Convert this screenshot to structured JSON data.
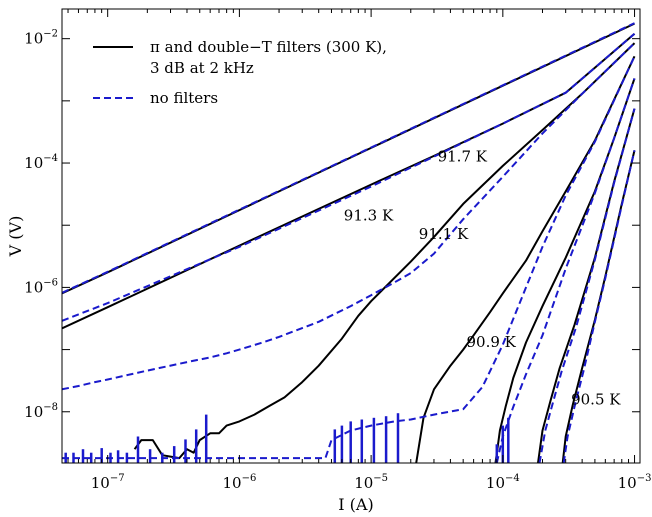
{
  "chart_data": {
    "type": "line",
    "xlabel": "I (A)",
    "ylabel": "V (V)",
    "xscale": "log",
    "yscale": "log",
    "xlim": [
      4.5e-08,
      0.0011
    ],
    "ylim": [
      1.5e-09,
      0.03
    ],
    "grid": false,
    "legend_position": "top-left",
    "x_ticks": [
      {
        "base": "10",
        "exp": "−7",
        "value": 1e-07
      },
      {
        "base": "10",
        "exp": "−6",
        "value": 1e-06
      },
      {
        "base": "10",
        "exp": "−5",
        "value": 1e-05
      },
      {
        "base": "10",
        "exp": "−4",
        "value": 0.0001
      },
      {
        "base": "10",
        "exp": "−3",
        "value": 0.001
      }
    ],
    "y_ticks": [
      {
        "base": "10",
        "exp": "−8",
        "value": 1e-08
      },
      {
        "base": "10",
        "exp": "−6",
        "value": 1e-06
      },
      {
        "base": "10",
        "exp": "−4",
        "value": 0.0001
      },
      {
        "base": "10",
        "exp": "−2",
        "value": 0.01
      }
    ],
    "legend": {
      "line1": "π and double−T filters (300 K),",
      "line2": "3 dB at 2 kHz",
      "line3": "no filters"
    },
    "colors": {
      "filtered": "#000000",
      "no_filters": "#1a1acc"
    },
    "annotations": [
      {
        "text": "91.7 K",
        "x": 3.2e-05,
        "y": 0.000105
      },
      {
        "text": "91.3 K",
        "x": 6.2e-06,
        "y": 1.2e-05
      },
      {
        "text": "91.1 K",
        "x": 2.3e-05,
        "y": 6e-06
      },
      {
        "text": "90.9 K",
        "x": 5.3e-05,
        "y": 1.1e-07
      },
      {
        "text": "90.5 K",
        "x": 0.00033,
        "y": 1.3e-08
      }
    ],
    "series": [
      {
        "style": "filtered",
        "x": [
          4.5e-08,
          1e-07,
          1e-06,
          1e-05,
          0.0001,
          0.001
        ],
        "y": [
          8e-07,
          1.75e-06,
          1.75e-05,
          0.000175,
          0.00175,
          0.0175
        ]
      },
      {
        "style": "no_filters",
        "x": [
          4.5e-08,
          1e-07,
          1e-06,
          1e-05,
          0.0001,
          0.001
        ],
        "y": [
          8.2e-07,
          1.78e-06,
          1.78e-05,
          0.000178,
          0.00178,
          0.0178
        ]
      },
      {
        "style": "filtered",
        "x": [
          4.5e-08,
          1e-07,
          1e-06,
          1e-05,
          3e-05,
          0.0001,
          0.0003,
          0.001
        ],
        "y": [
          2.2e-07,
          4.8e-07,
          4.7e-06,
          4.5e-05,
          0.00013,
          0.00043,
          0.00135,
          0.012
        ]
      },
      {
        "style": "no_filters",
        "x": [
          4.5e-08,
          1e-07,
          1e-06,
          3e-06,
          1e-05,
          3e-05,
          0.0001,
          0.0003,
          0.001
        ],
        "y": [
          2.9e-07,
          5.6e-07,
          4.5e-06,
          1.3e-05,
          4.2e-05,
          0.000127,
          0.00043,
          0.00135,
          0.012
        ]
      },
      {
        "style": "filtered",
        "x": [
          1.6e-07,
          1.8e-07,
          2.2e-07,
          2.6e-07,
          3e-07,
          3.5e-07,
          4e-07,
          4.5e-07,
          5e-07,
          6e-07,
          7e-07,
          8e-07,
          1e-06,
          1.3e-06,
          1.7e-06,
          2.2e-06,
          3e-06,
          4e-06,
          6e-06,
          8e-06,
          1e-05,
          2e-05,
          3e-05,
          5e-05,
          0.0001,
          0.0002,
          0.0004,
          0.001
        ],
        "y": [
          2.5e-09,
          3.5e-09,
          3.5e-09,
          2e-09,
          1.9e-09,
          1.8e-09,
          2.5e-09,
          2.2e-09,
          3.5e-09,
          4.5e-09,
          4.5e-09,
          6e-09,
          7e-09,
          9e-09,
          1.25e-08,
          1.7e-08,
          3e-08,
          5.5e-08,
          1.5e-07,
          3.5e-07,
          6e-07,
          2.6e-06,
          6.5e-06,
          2.2e-05,
          9e-05,
          0.00034,
          0.0013,
          0.0085
        ]
      },
      {
        "style": "no_filters",
        "x": [
          4.5e-08,
          6e-08,
          8e-08,
          1e-07,
          2e-07,
          4e-07,
          6e-07,
          8e-07,
          1e-06,
          1.5e-06,
          2e-06,
          4e-06,
          7e-06,
          1e-05,
          1.5e-05,
          2e-05,
          3e-05,
          5e-05,
          0.0001,
          0.0002,
          0.0004,
          0.001
        ],
        "y": [
          2.3e-08,
          2.6e-08,
          3e-08,
          3.3e-08,
          4.6e-08,
          6.3e-08,
          7.5e-08,
          8.7e-08,
          1e-07,
          1.3e-07,
          1.6e-07,
          2.8e-07,
          5e-07,
          7.5e-07,
          1.2e-06,
          1.7e-06,
          3.5e-06,
          1.25e-05,
          6e-05,
          0.0003,
          0.0013,
          0.0085
        ]
      },
      {
        "style": "filtered",
        "x": [
          2.2e-05,
          2.5e-05,
          3e-05,
          4e-05,
          5e-05,
          6e-05,
          8e-05,
          0.0001,
          0.00015,
          0.0002,
          0.0003,
          0.0005,
          0.001
        ],
        "y": [
          1.5e-09,
          8e-09,
          2.3e-08,
          5.5e-08,
          1e-07,
          1.7e-07,
          4e-07,
          8e-07,
          2.7e-06,
          8e-06,
          3.5e-05,
          0.00023,
          0.0052
        ]
      },
      {
        "style": "no_filters",
        "x": [
          4.5e-08,
          1e-07,
          1e-06,
          4.5e-06,
          5e-06,
          7e-06,
          1e-05,
          1.5e-05,
          2e-05,
          3e-05,
          5e-05,
          7e-05,
          0.0001,
          0.00015,
          0.0002,
          0.0003,
          0.0005,
          0.001
        ],
        "y": [
          1.8e-09,
          1.8e-09,
          1.8e-09,
          1.8e-09,
          3.5e-09,
          5e-09,
          6e-09,
          7e-09,
          7.5e-09,
          9e-09,
          1.1e-08,
          2.5e-08,
          1.2e-07,
          1e-06,
          4.5e-06,
          3e-05,
          0.00022,
          0.0052
        ]
      },
      {
        "style": "filtered",
        "x": [
          8.8e-05,
          9.5e-05,
          0.000105,
          0.00012,
          0.00015,
          0.0002,
          0.0003,
          0.0005,
          0.0007,
          0.001
        ],
        "y": [
          1.5e-09,
          5e-09,
          1.2e-08,
          3.5e-08,
          1.3e-07,
          5e-07,
          3e-06,
          3.5e-05,
          0.00025,
          0.0023
        ]
      },
      {
        "style": "no_filters",
        "x": [
          9e-05,
          0.0001,
          0.00012,
          0.00015,
          0.0002,
          0.0003,
          0.0005,
          0.0007,
          0.001
        ],
        "y": [
          1.5e-09,
          4e-09,
          1.2e-08,
          4e-08,
          1.7e-07,
          2e-06,
          3.3e-05,
          0.00025,
          0.0023
        ]
      },
      {
        "style": "filtered",
        "x": [
          0.000185,
          0.0002,
          0.00023,
          0.00027,
          0.00035,
          0.0005,
          0.0007,
          0.001
        ],
        "y": [
          1.5e-09,
          5e-09,
          1.5e-08,
          5e-08,
          2.5e-07,
          3e-06,
          5e-05,
          0.00075
        ]
      },
      {
        "style": "no_filters",
        "x": [
          0.00019,
          0.00021,
          0.00024,
          0.00028,
          0.00036,
          0.0005,
          0.0007,
          0.001
        ],
        "y": [
          1.5e-09,
          5e-09,
          1.4e-08,
          4.5e-08,
          2.3e-07,
          2.8e-06,
          4.8e-05,
          0.00075
        ]
      },
      {
        "style": "filtered",
        "x": [
          0.000285,
          0.0003,
          0.00034,
          0.0004,
          0.0005,
          0.0006,
          0.0008,
          0.001
        ],
        "y": [
          1.5e-09,
          4e-09,
          1.3e-08,
          5e-08,
          3e-07,
          1.5e-06,
          2.2e-05,
          0.00016
        ]
      },
      {
        "style": "no_filters",
        "x": [
          0.00029,
          0.00031,
          0.00035,
          0.00041,
          0.0005,
          0.0006,
          0.0008,
          0.001
        ],
        "y": [
          1.5e-09,
          4e-09,
          1.2e-08,
          4.5e-08,
          2.8e-07,
          1.4e-06,
          2.1e-05,
          0.00016
        ]
      }
    ],
    "noise_spikes_no_filters": {
      "x": [
        4.8e-08,
        5.5e-08,
        6.5e-08,
        7.5e-08,
        9e-08,
        1.05e-07,
        1.2e-07,
        1.4e-07,
        1.7e-07,
        2.1e-07,
        2.6e-07,
        3.2e-07,
        3.9e-07,
        4.7e-07,
        5.6e-07,
        5.3e-06,
        6e-06,
        7e-06,
        8.5e-06,
        1.05e-05,
        1.3e-05,
        1.6e-05,
        9e-05,
        0.0001,
        0.00011
      ],
      "y": [
        2.2e-09,
        2.2e-09,
        2.5e-09,
        2.2e-09,
        2.6e-09,
        2.2e-09,
        2.4e-09,
        2.2e-09,
        4e-09,
        2.5e-09,
        2.2e-09,
        2.8e-09,
        3.6e-09,
        5.2e-09,
        9e-09,
        5.2e-09,
        6e-09,
        7e-09,
        7.5e-09,
        8e-09,
        8.5e-09,
        9.5e-09,
        3e-09,
        6e-09,
        8e-09
      ]
    }
  }
}
